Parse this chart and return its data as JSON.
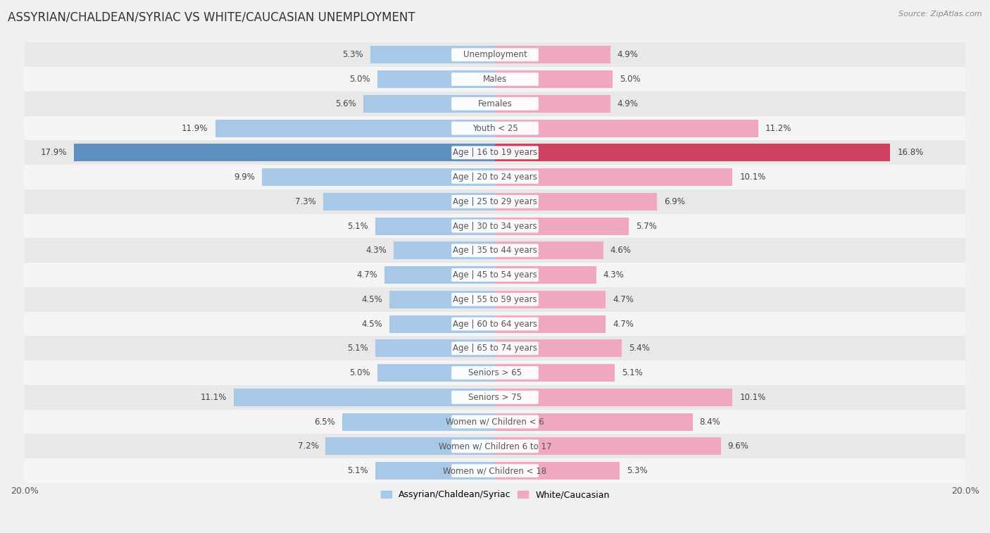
{
  "title": "ASSYRIAN/CHALDEAN/SYRIAC VS WHITE/CAUCASIAN UNEMPLOYMENT",
  "source": "Source: ZipAtlas.com",
  "categories": [
    "Unemployment",
    "Males",
    "Females",
    "Youth < 25",
    "Age | 16 to 19 years",
    "Age | 20 to 24 years",
    "Age | 25 to 29 years",
    "Age | 30 to 34 years",
    "Age | 35 to 44 years",
    "Age | 45 to 54 years",
    "Age | 55 to 59 years",
    "Age | 60 to 64 years",
    "Age | 65 to 74 years",
    "Seniors > 65",
    "Seniors > 75",
    "Women w/ Children < 6",
    "Women w/ Children 6 to 17",
    "Women w/ Children < 18"
  ],
  "left_values": [
    5.3,
    5.0,
    5.6,
    11.9,
    17.9,
    9.9,
    7.3,
    5.1,
    4.3,
    4.7,
    4.5,
    4.5,
    5.1,
    5.0,
    11.1,
    6.5,
    7.2,
    5.1
  ],
  "right_values": [
    4.9,
    5.0,
    4.9,
    11.2,
    16.8,
    10.1,
    6.9,
    5.7,
    4.6,
    4.3,
    4.7,
    4.7,
    5.4,
    5.1,
    10.1,
    8.4,
    9.6,
    5.3
  ],
  "left_color": "#a8c8e8",
  "right_color": "#f0a8c0",
  "highlight_left_color": "#6090c0",
  "highlight_right_color": "#d04060",
  "highlight_rows": [
    4
  ],
  "axis_max": 20.0,
  "legend_left": "Assyrian/Chaldean/Syriac",
  "legend_right": "White/Caucasian",
  "bg_color": "#f0f0f0",
  "row_bg_even": "#e8e8e8",
  "row_bg_odd": "#f5f5f5",
  "title_fontsize": 12,
  "label_fontsize": 8.5,
  "value_fontsize": 8.5
}
